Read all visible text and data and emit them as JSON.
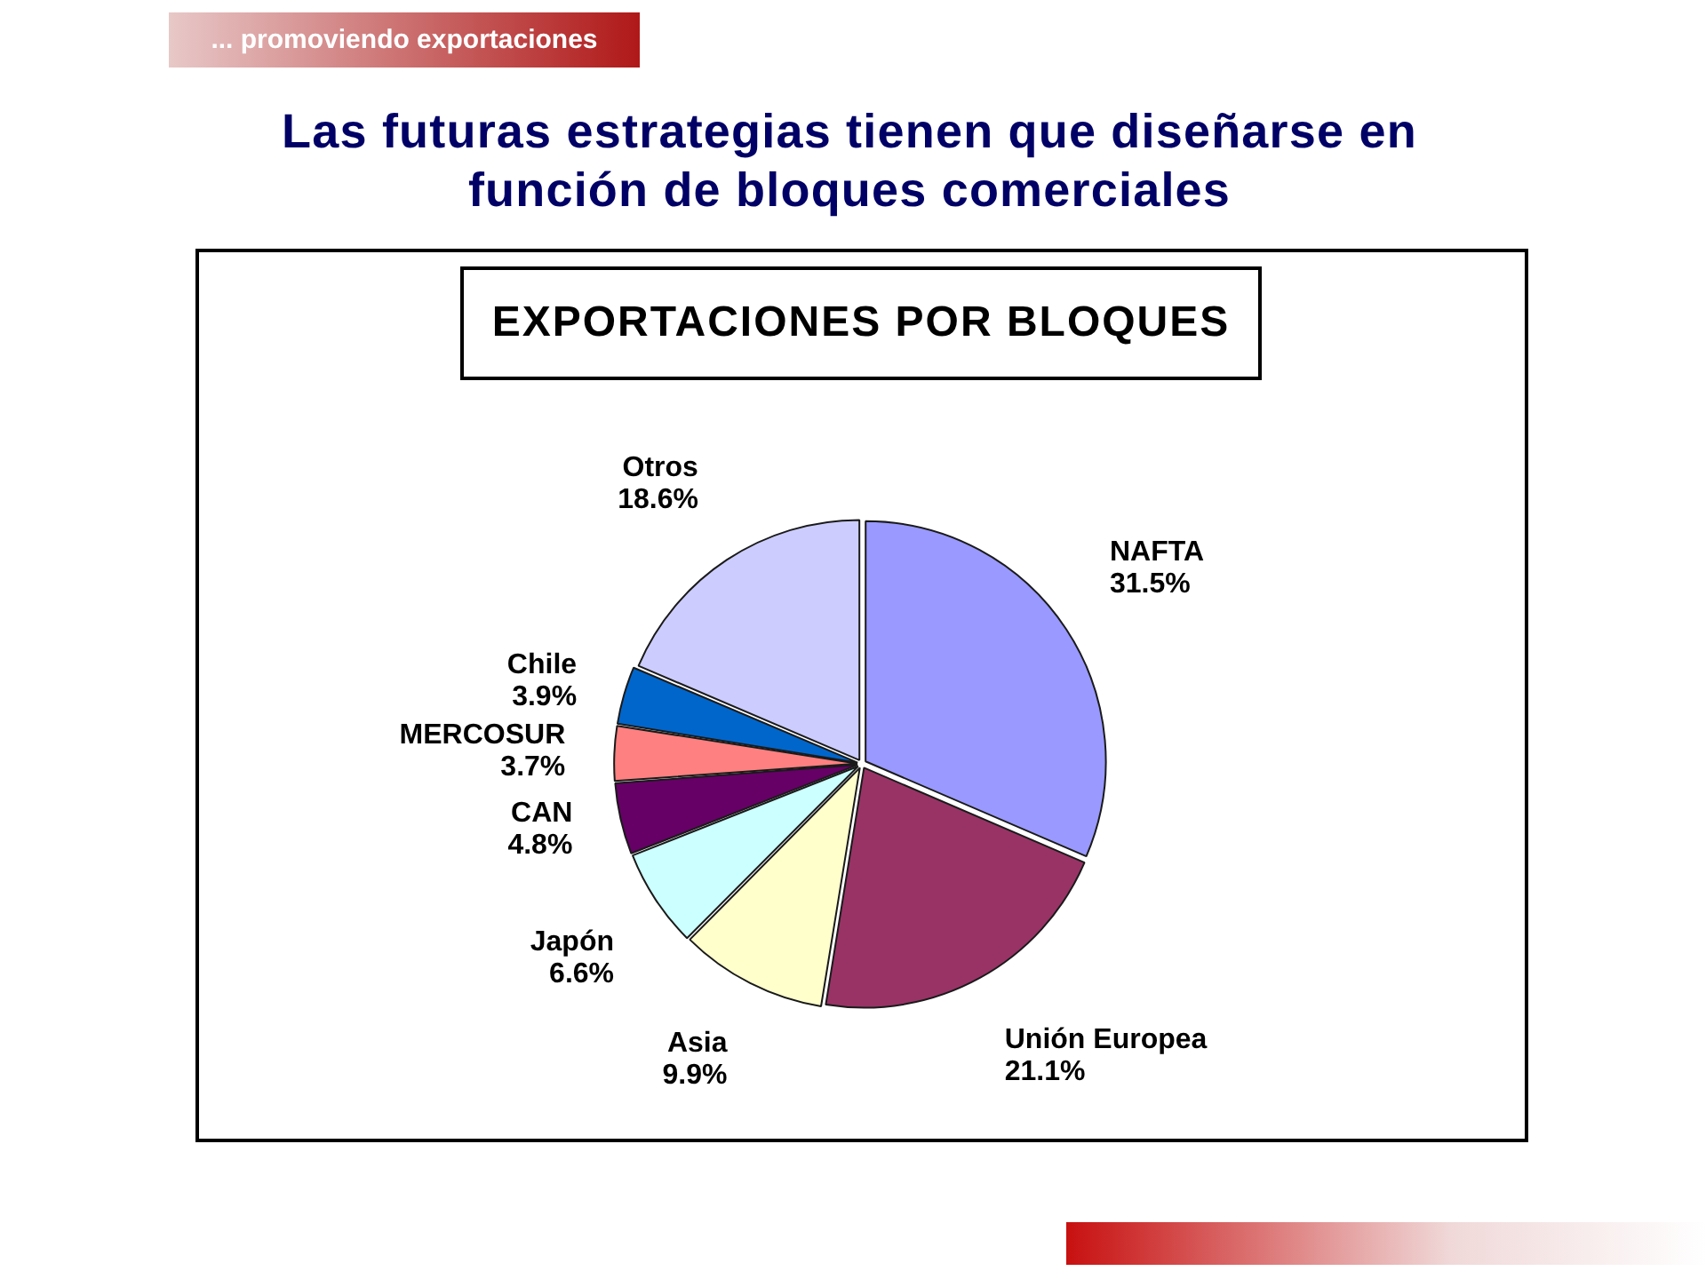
{
  "chart_data": {
    "type": "pie",
    "title": "Las futuras estrategias tienen que diseñarse en función de bloques comerciales",
    "subtitle": "EXPORTACIONES POR BLOQUES",
    "categories": [
      "NAFTA",
      "Unión Europea",
      "Asia",
      "Japón",
      "CAN",
      "MERCOSUR",
      "Chile",
      "Otros"
    ],
    "values": [
      31.5,
      21.1,
      9.9,
      6.6,
      4.8,
      3.7,
      3.9,
      18.6
    ],
    "colors": [
      "#9999ff",
      "#993366",
      "#ffffcc",
      "#ccffff",
      "#660066",
      "#ff8080",
      "#0066cc",
      "#ccccff"
    ],
    "value_labels": [
      "31.5%",
      "21.1%",
      "9.9%",
      "6.6%",
      "4.8%",
      "3.7%",
      "3.9%",
      "18.6%"
    ],
    "annotations": [
      "... promoviendo exportaciones"
    ]
  }
}
